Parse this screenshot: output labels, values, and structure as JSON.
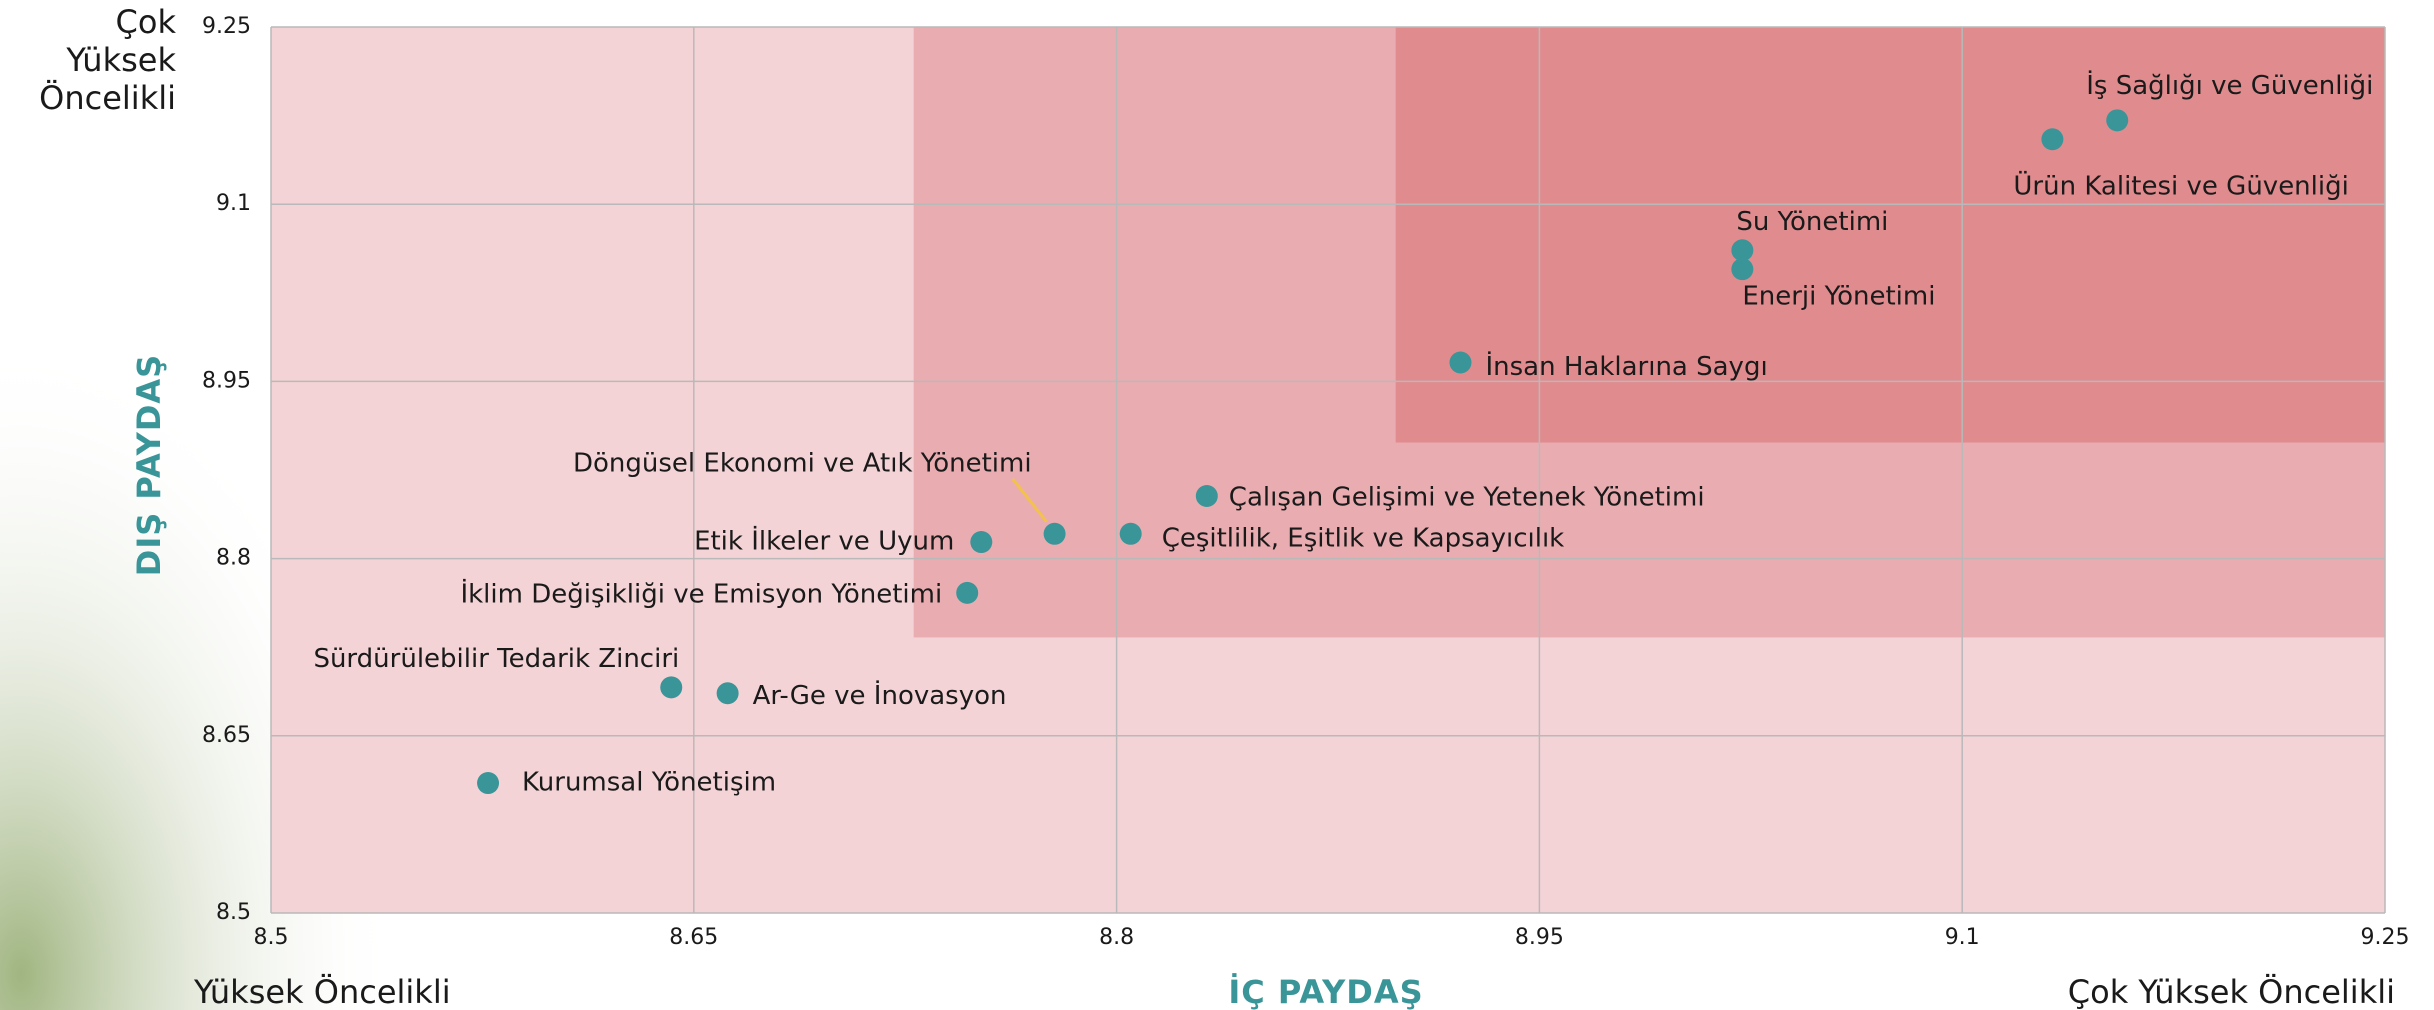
{
  "chart_data": {
    "type": "scatter",
    "corner_top_left": "Çok Yüksek Öncelikli",
    "corner_bottom_left": "Yüksek Öncelikli",
    "corner_bottom_right": "Çok Yüksek Öncelikli",
    "xlabel": "İÇ PAYDAŞ",
    "ylabel": "DIŞ PAYDAŞ",
    "point_labels": [
      "İş Sağlığı ve Güvenliği",
      "Ürün Kalitesi ve Güvenliği",
      "Su Yönetimi",
      "Enerji Yönetimi",
      "İnsan Haklarına Saygı",
      "Çalışan Gelişimi ve Yetenek Yönetimi",
      "Çeşitlilik, Eşitlik ve Kapsayıcılık",
      "Döngüsel Ekonomi ve Atık Yönetimi",
      "Etik İlkeler ve Uyum",
      "İklim Değişikliği ve Emisyon Yönetimi",
      "Sürdürülebilir Tedarik Zinciri",
      "Ar-Ge ve İnovasyon",
      "Kurumsal Yönetişim"
    ],
    "x": [
      9.155,
      9.132,
      9.022,
      9.022,
      8.922,
      8.832,
      8.805,
      8.778,
      8.752,
      8.747,
      8.642,
      8.662,
      8.577
    ],
    "values": [
      9.171,
      9.155,
      9.061,
      9.045,
      8.966,
      8.853,
      8.821,
      8.821,
      8.814,
      8.771,
      8.691,
      8.686,
      8.61
    ],
    "color": "#3a9599",
    "xlim": [
      8.5,
      9.25
    ],
    "ylim": [
      8.5,
      9.25
    ],
    "xticks": [
      8.5,
      8.65,
      8.8,
      8.95,
      9.1,
      9.25
    ],
    "yticks": [
      8.5,
      8.65,
      8.8,
      8.95,
      9.1,
      9.25
    ],
    "grid": true
  }
}
